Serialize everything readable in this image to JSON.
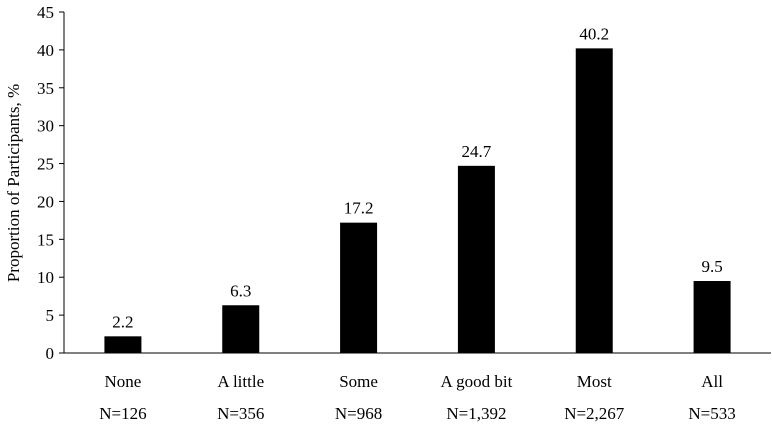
{
  "chart_data": {
    "type": "bar",
    "categories": [
      "None",
      "A little",
      "Some",
      "A good bit",
      "Most",
      "All"
    ],
    "sample_sizes": [
      "N=126",
      "N=356",
      "N=968",
      "N=1,392",
      "N=2,267",
      "N=533"
    ],
    "values": [
      2.2,
      6.3,
      17.2,
      24.7,
      40.2,
      9.5
    ],
    "data_labels": [
      "2.2",
      "6.3",
      "17.2",
      "24.7",
      "40.2",
      "9.5"
    ],
    "title": "",
    "xlabel": "",
    "ylabel": "Proportion of Participants, %",
    "ylim": [
      0,
      45
    ],
    "yticks": [
      0,
      5,
      10,
      15,
      20,
      25,
      30,
      35,
      40,
      45
    ],
    "grid": false,
    "legend": "none",
    "bar_color": "#000000"
  }
}
